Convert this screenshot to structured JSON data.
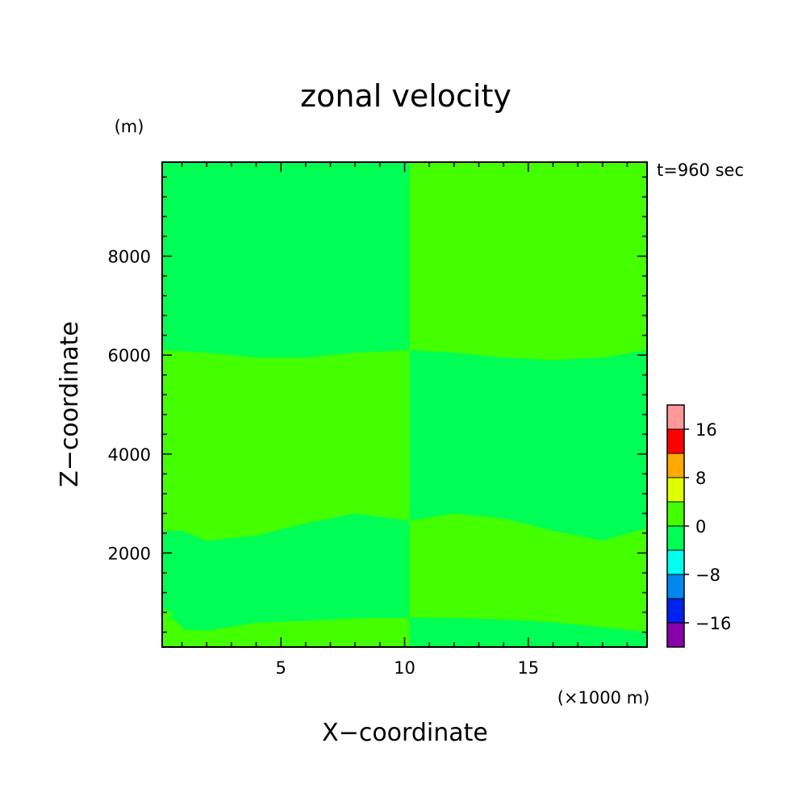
{
  "chart_data": {
    "type": "heatmap",
    "title": "zonal velocity",
    "xlabel": "X−coordinate",
    "ylabel": "Z−coordinate",
    "x_unit": "(×1000 m)",
    "y_unit": "(m)",
    "annotation": "t=960 sec",
    "xlim": [
      0.2,
      19.8
    ],
    "ylim": [
      100,
      9900
    ],
    "x_ticks": [
      {
        "value": 5,
        "label": "5"
      },
      {
        "value": 10,
        "label": "10"
      },
      {
        "value": 15,
        "label": "15"
      }
    ],
    "y_ticks": [
      {
        "value": 2000,
        "label": "2000"
      },
      {
        "value": 4000,
        "label": "4000"
      },
      {
        "value": 6000,
        "label": "6000"
      },
      {
        "value": 8000,
        "label": "8000"
      }
    ],
    "colorbar": {
      "levels": [
        -20,
        -16,
        -12,
        -8,
        -4,
        0,
        4,
        8,
        12,
        16,
        20
      ],
      "colors": [
        "#8800aa",
        "#0022ee",
        "#0088ee",
        "#00ffee",
        "#00ff55",
        "#44ff00",
        "#ddff00",
        "#ffaa00",
        "#ff0000",
        "#ff9999"
      ],
      "tick_labels": [
        {
          "value": -16,
          "label": "−16"
        },
        {
          "value": -8,
          "label": "−8"
        },
        {
          "value": 0,
          "label": "0"
        },
        {
          "value": 8,
          "label": "8"
        },
        {
          "value": 16,
          "label": "16"
        }
      ]
    },
    "regions": {
      "background_color": "#00ff55",
      "band_color": "#44ff00",
      "left_bands": [
        {
          "upper": [
            [
              0.2,
              6100
            ],
            [
              2,
              6050
            ],
            [
              4,
              5950
            ],
            [
              6,
              5950
            ],
            [
              8,
              6050
            ],
            [
              10.2,
              6100
            ]
          ],
          "lower": [
            [
              0.2,
              2450
            ],
            [
              1,
              2450
            ],
            [
              2,
              2250
            ],
            [
              4,
              2350
            ],
            [
              6,
              2600
            ],
            [
              8,
              2800
            ],
            [
              10.2,
              2650
            ]
          ]
        },
        {
          "upper": [
            [
              0.2,
              700
            ],
            [
              0.7,
              650
            ],
            [
              1.1,
              450
            ],
            [
              2,
              430
            ],
            [
              4,
              590
            ],
            [
              6,
              630
            ],
            [
              8,
              680
            ],
            [
              10.2,
              690
            ]
          ],
          "lower": [
            [
              0.2,
              100
            ],
            [
              10.2,
              100
            ]
          ]
        },
        {
          "upper": [
            [
              0.2,
              900
            ],
            [
              0.7,
              750
            ],
            [
              0.2,
              650
            ]
          ],
          "lower": []
        }
      ],
      "right_bands": [
        {
          "upper": [
            [
              10.2,
              9900
            ],
            [
              19.8,
              9900
            ]
          ],
          "lower": [
            [
              10.2,
              6100
            ],
            [
              12,
              6050
            ],
            [
              14,
              5950
            ],
            [
              16,
              5900
            ],
            [
              18,
              5950
            ],
            [
              19.8,
              6100
            ]
          ]
        },
        {
          "upper": [
            [
              10.2,
              2650
            ],
            [
              12,
              2800
            ],
            [
              14,
              2700
            ],
            [
              16,
              2450
            ],
            [
              18,
              2250
            ],
            [
              19.8,
              2500
            ]
          ],
          "lower": [
            [
              10.2,
              700
            ],
            [
              12,
              690
            ],
            [
              14,
              660
            ],
            [
              16,
              600
            ],
            [
              18,
              500
            ],
            [
              19.8,
              400
            ]
          ]
        }
      ]
    }
  }
}
